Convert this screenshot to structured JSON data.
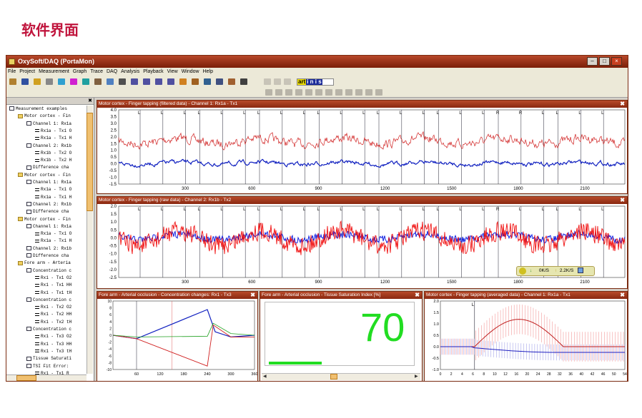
{
  "heading": "软件界面",
  "window": {
    "title": "OxySoft/DAQ (PortaMon)"
  },
  "menu": [
    "File",
    "Project",
    "Measurement",
    "Graph",
    "Trace",
    "DAQ",
    "Analysis",
    "Playback",
    "View",
    "Window",
    "Help"
  ],
  "toolbar": {
    "brand_a": "art",
    "brand_b": "i n i s"
  },
  "tree": [
    {
      "indent": 0,
      "icon": "c",
      "label": "Measurement examples"
    },
    {
      "indent": 1,
      "icon": "f",
      "label": "Motor cortex - Fin"
    },
    {
      "indent": 2,
      "icon": "c",
      "label": "Channel 1: Rx1a"
    },
    {
      "indent": 3,
      "icon": "d",
      "label": "Rx1a - Tx1 O"
    },
    {
      "indent": 3,
      "icon": "d",
      "label": "Rx1a - Tx1 H"
    },
    {
      "indent": 2,
      "icon": "c",
      "label": "Channel 2: Rx1b"
    },
    {
      "indent": 3,
      "icon": "d",
      "label": "Rx1b - Tx2 O"
    },
    {
      "indent": 3,
      "icon": "d",
      "label": "Rx1b - Tx2 H"
    },
    {
      "indent": 2,
      "icon": "c",
      "label": "Difference cha"
    },
    {
      "indent": 1,
      "icon": "f",
      "label": "Motor cortex - Fin"
    },
    {
      "indent": 2,
      "icon": "c",
      "label": "Channel 1: Rx1a"
    },
    {
      "indent": 3,
      "icon": "d",
      "label": "Rx1a - Tx1 O"
    },
    {
      "indent": 3,
      "icon": "d",
      "label": "Rx1a - Tx1 H"
    },
    {
      "indent": 2,
      "icon": "c",
      "label": "Channel 2: Rx1b"
    },
    {
      "indent": 2,
      "icon": "c",
      "label": "Difference cha"
    },
    {
      "indent": 1,
      "icon": "f",
      "label": "Motor cortex - Fin"
    },
    {
      "indent": 2,
      "icon": "c",
      "label": "Channel 1: Rx1a"
    },
    {
      "indent": 3,
      "icon": "d",
      "label": "Rx1a - Tx1 O"
    },
    {
      "indent": 3,
      "icon": "d",
      "label": "Rx1a - Tx1 H"
    },
    {
      "indent": 2,
      "icon": "c",
      "label": "Channel 2: Rx1b"
    },
    {
      "indent": 2,
      "icon": "c",
      "label": "Difference cha"
    },
    {
      "indent": 1,
      "icon": "f",
      "label": "Fore arm - Arteria"
    },
    {
      "indent": 2,
      "icon": "c",
      "label": "Concentration c"
    },
    {
      "indent": 3,
      "icon": "d",
      "label": "Rx1 - Tx1 O2"
    },
    {
      "indent": 3,
      "icon": "d",
      "label": "Rx1 - Tx1 HH"
    },
    {
      "indent": 3,
      "icon": "d",
      "label": "Rx1 - Tx1 tH"
    },
    {
      "indent": 2,
      "icon": "c",
      "label": "Concentration c"
    },
    {
      "indent": 3,
      "icon": "d",
      "label": "Rx1 - Tx2 O2"
    },
    {
      "indent": 3,
      "icon": "d",
      "label": "Rx1 - Tx2 HH"
    },
    {
      "indent": 3,
      "icon": "d",
      "label": "Rx1 - Tx2 tH"
    },
    {
      "indent": 2,
      "icon": "c",
      "label": "Concentration c"
    },
    {
      "indent": 3,
      "icon": "d",
      "label": "Rx1 - Tx3 O2"
    },
    {
      "indent": 3,
      "icon": "d",
      "label": "Rx1 - Tx3 HH"
    },
    {
      "indent": 3,
      "icon": "d",
      "label": "Rx1 - Tx3 tH"
    },
    {
      "indent": 2,
      "icon": "c",
      "label": "Tissue Saturati"
    },
    {
      "indent": 2,
      "icon": "c",
      "label": "TSI Fit Error:"
    },
    {
      "indent": 3,
      "icon": "d",
      "label": "Rx1 - Tx1 R"
    }
  ],
  "panels": {
    "p1": {
      "title": "Motor cortex - Finger tapping (filtered data) - Channel 1: Rx1a - Tx1",
      "close": "✖"
    },
    "p2": {
      "title": "Motor cortex - Finger tapping (raw data) - Channel 2: Rx1b - Tx2",
      "close": "✖"
    },
    "p3": {
      "title": "Fore arm - Arterial occlusion - Concentration changes: Rx1 - Tx3",
      "close": "✖"
    },
    "p4": {
      "title": "Fore arm - Arterial occlusion - Tissue Saturation Index [%]",
      "close": "✖"
    },
    "p5": {
      "title": "Motor cortex - Finger tapping (averaged data) - Channel 1: Rx1a - Tx1",
      "close": "✖"
    }
  },
  "tsi": {
    "value": "70",
    "bar_fraction": 0.37
  },
  "status": {
    "left": "0K/S",
    "right": "2.2K/S"
  },
  "chart_data": [
    {
      "type": "line",
      "name": "filtered",
      "xticks": [
        "300",
        "600",
        "900",
        "1200",
        "1500",
        "1800",
        "2100"
      ],
      "yticks": [
        "4.0",
        "3.5",
        "3.0",
        "2.5",
        "2.0",
        "1.5",
        "1.0",
        "0.5",
        "0.0",
        "-0.5",
        "-1.0",
        "-1.5"
      ],
      "ylim": [
        -1.5,
        4.0
      ],
      "markers": [
        "L",
        "L",
        "L",
        "L",
        "L",
        "L",
        "L",
        "L",
        "L",
        "L",
        "L",
        "L",
        "L",
        "L",
        "L",
        "L",
        "L",
        "L",
        "R",
        "R",
        "L",
        "L",
        "L",
        "L"
      ],
      "colors": {
        "oxy": "#d02020",
        "deoxy": "#1020c0"
      }
    },
    {
      "type": "line",
      "name": "raw",
      "xticks": [
        "300",
        "600",
        "900",
        "1200",
        "1500",
        "1800",
        "2100"
      ],
      "yticks": [
        "2.0",
        "1.5",
        "1.0",
        "0.5",
        "0.0",
        "-0.5",
        "-1.0",
        "-1.5",
        "-2.0",
        "-2.5"
      ],
      "ylim": [
        -2.5,
        2.0
      ],
      "markers": [
        "L",
        "L",
        "L",
        "L",
        "L",
        "L",
        "L",
        "L",
        "L",
        "L",
        "L",
        "L",
        "L",
        "L",
        "L",
        "L",
        "L",
        "L",
        "R",
        "L",
        "L",
        "L",
        "L",
        "L"
      ]
    },
    {
      "type": "line",
      "name": "occlusion",
      "xticks": [
        "60",
        "120",
        "180",
        "240",
        "300",
        "360"
      ],
      "yticks": [
        "10",
        "8",
        "6",
        "4",
        "2",
        "0",
        "-2",
        "-4",
        "-6",
        "-8",
        "-10"
      ],
      "ylim": [
        -10,
        10
      ],
      "xlim": [
        0,
        360
      ]
    },
    {
      "type": "line",
      "name": "averaged",
      "xticks": [
        "0",
        "2",
        "4",
        "6",
        "8",
        "10",
        "12",
        "16",
        "20",
        "24",
        "28",
        "32",
        "36",
        "40",
        "42",
        "46",
        "50",
        "54"
      ],
      "yticks": [
        "2.0",
        "1.5",
        "1.0",
        "0.5",
        "0.0",
        "-0.5",
        "-1.0"
      ],
      "ylim": [
        -1.0,
        2.0
      ],
      "marker": "L"
    }
  ]
}
